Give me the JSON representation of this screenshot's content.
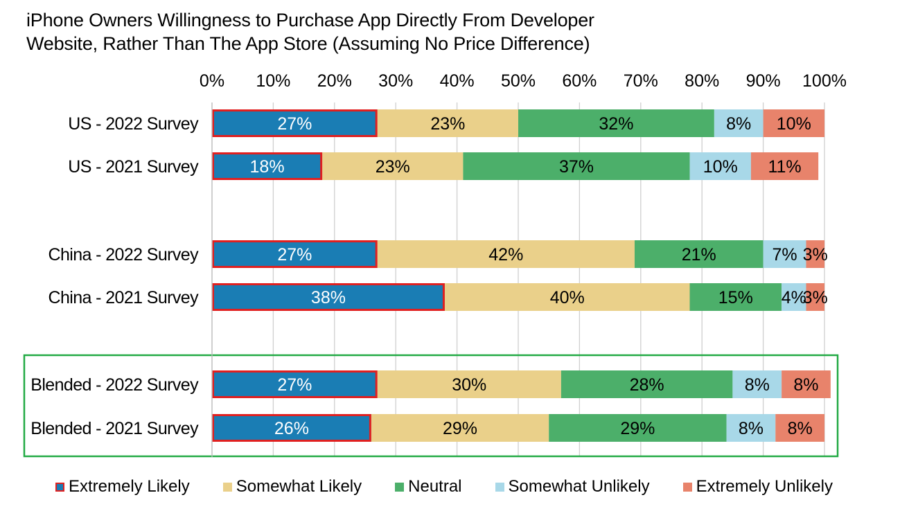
{
  "chart_data": {
    "type": "bar",
    "orientation": "horizontal",
    "stacked": true,
    "title_lines": [
      "iPhone Owners Willingness to Purchase App Directly From Developer",
      "Website, Rather Than The App Store (Assuming No Price Difference)"
    ],
    "x_ticks": [
      "0%",
      "10%",
      "20%",
      "30%",
      "40%",
      "50%",
      "60%",
      "70%",
      "80%",
      "90%",
      "100%"
    ],
    "xlim": [
      0,
      100
    ],
    "grid": "vertical",
    "legend_position": "bottom",
    "categories": [
      "US - 2022 Survey",
      "US - 2021 Survey",
      "China - 2022 Survey",
      "China - 2021 Survey",
      "Blended - 2022 Survey",
      "Blended - 2021 Survey"
    ],
    "series": [
      {
        "name": "Extremely Likely",
        "color": "#1a7db4",
        "label_color": "#ffffff",
        "outline": "#e02020",
        "values": [
          27,
          18,
          27,
          38,
          27,
          26
        ],
        "labels": [
          "27%",
          "18%",
          "27%",
          "38%",
          "27%",
          "26%"
        ]
      },
      {
        "name": "Somewhat Likely",
        "color": "#ead08a",
        "label_color": "#000000",
        "values": [
          23,
          23,
          42,
          40,
          30,
          29
        ],
        "labels": [
          "23%",
          "23%",
          "42%",
          "40%",
          "30%",
          "29%"
        ]
      },
      {
        "name": "Neutral",
        "color": "#4caf6a",
        "label_color": "#000000",
        "values": [
          32,
          37,
          21,
          15,
          28,
          29
        ],
        "labels": [
          "32%",
          "37%",
          "21%",
          "15%",
          "28%",
          "29%"
        ]
      },
      {
        "name": "Somewhat Unlikely",
        "color": "#a8d8e8",
        "label_color": "#000000",
        "values": [
          8,
          10,
          7,
          4,
          8,
          8
        ],
        "labels": [
          "8%",
          "10%",
          "7%",
          "4%",
          "8%",
          "8%"
        ]
      },
      {
        "name": "Extremely Unlikely",
        "color": "#e8836b",
        "label_color": "#000000",
        "values": [
          10,
          11,
          3,
          3,
          8,
          8
        ],
        "labels": [
          "10%",
          "11%",
          "3%",
          "3%",
          "8%",
          "8%"
        ]
      }
    ],
    "highlight_box": {
      "rows": [
        "Blended - 2022 Survey",
        "Blended - 2021 Survey"
      ],
      "color": "#22aa44"
    }
  }
}
